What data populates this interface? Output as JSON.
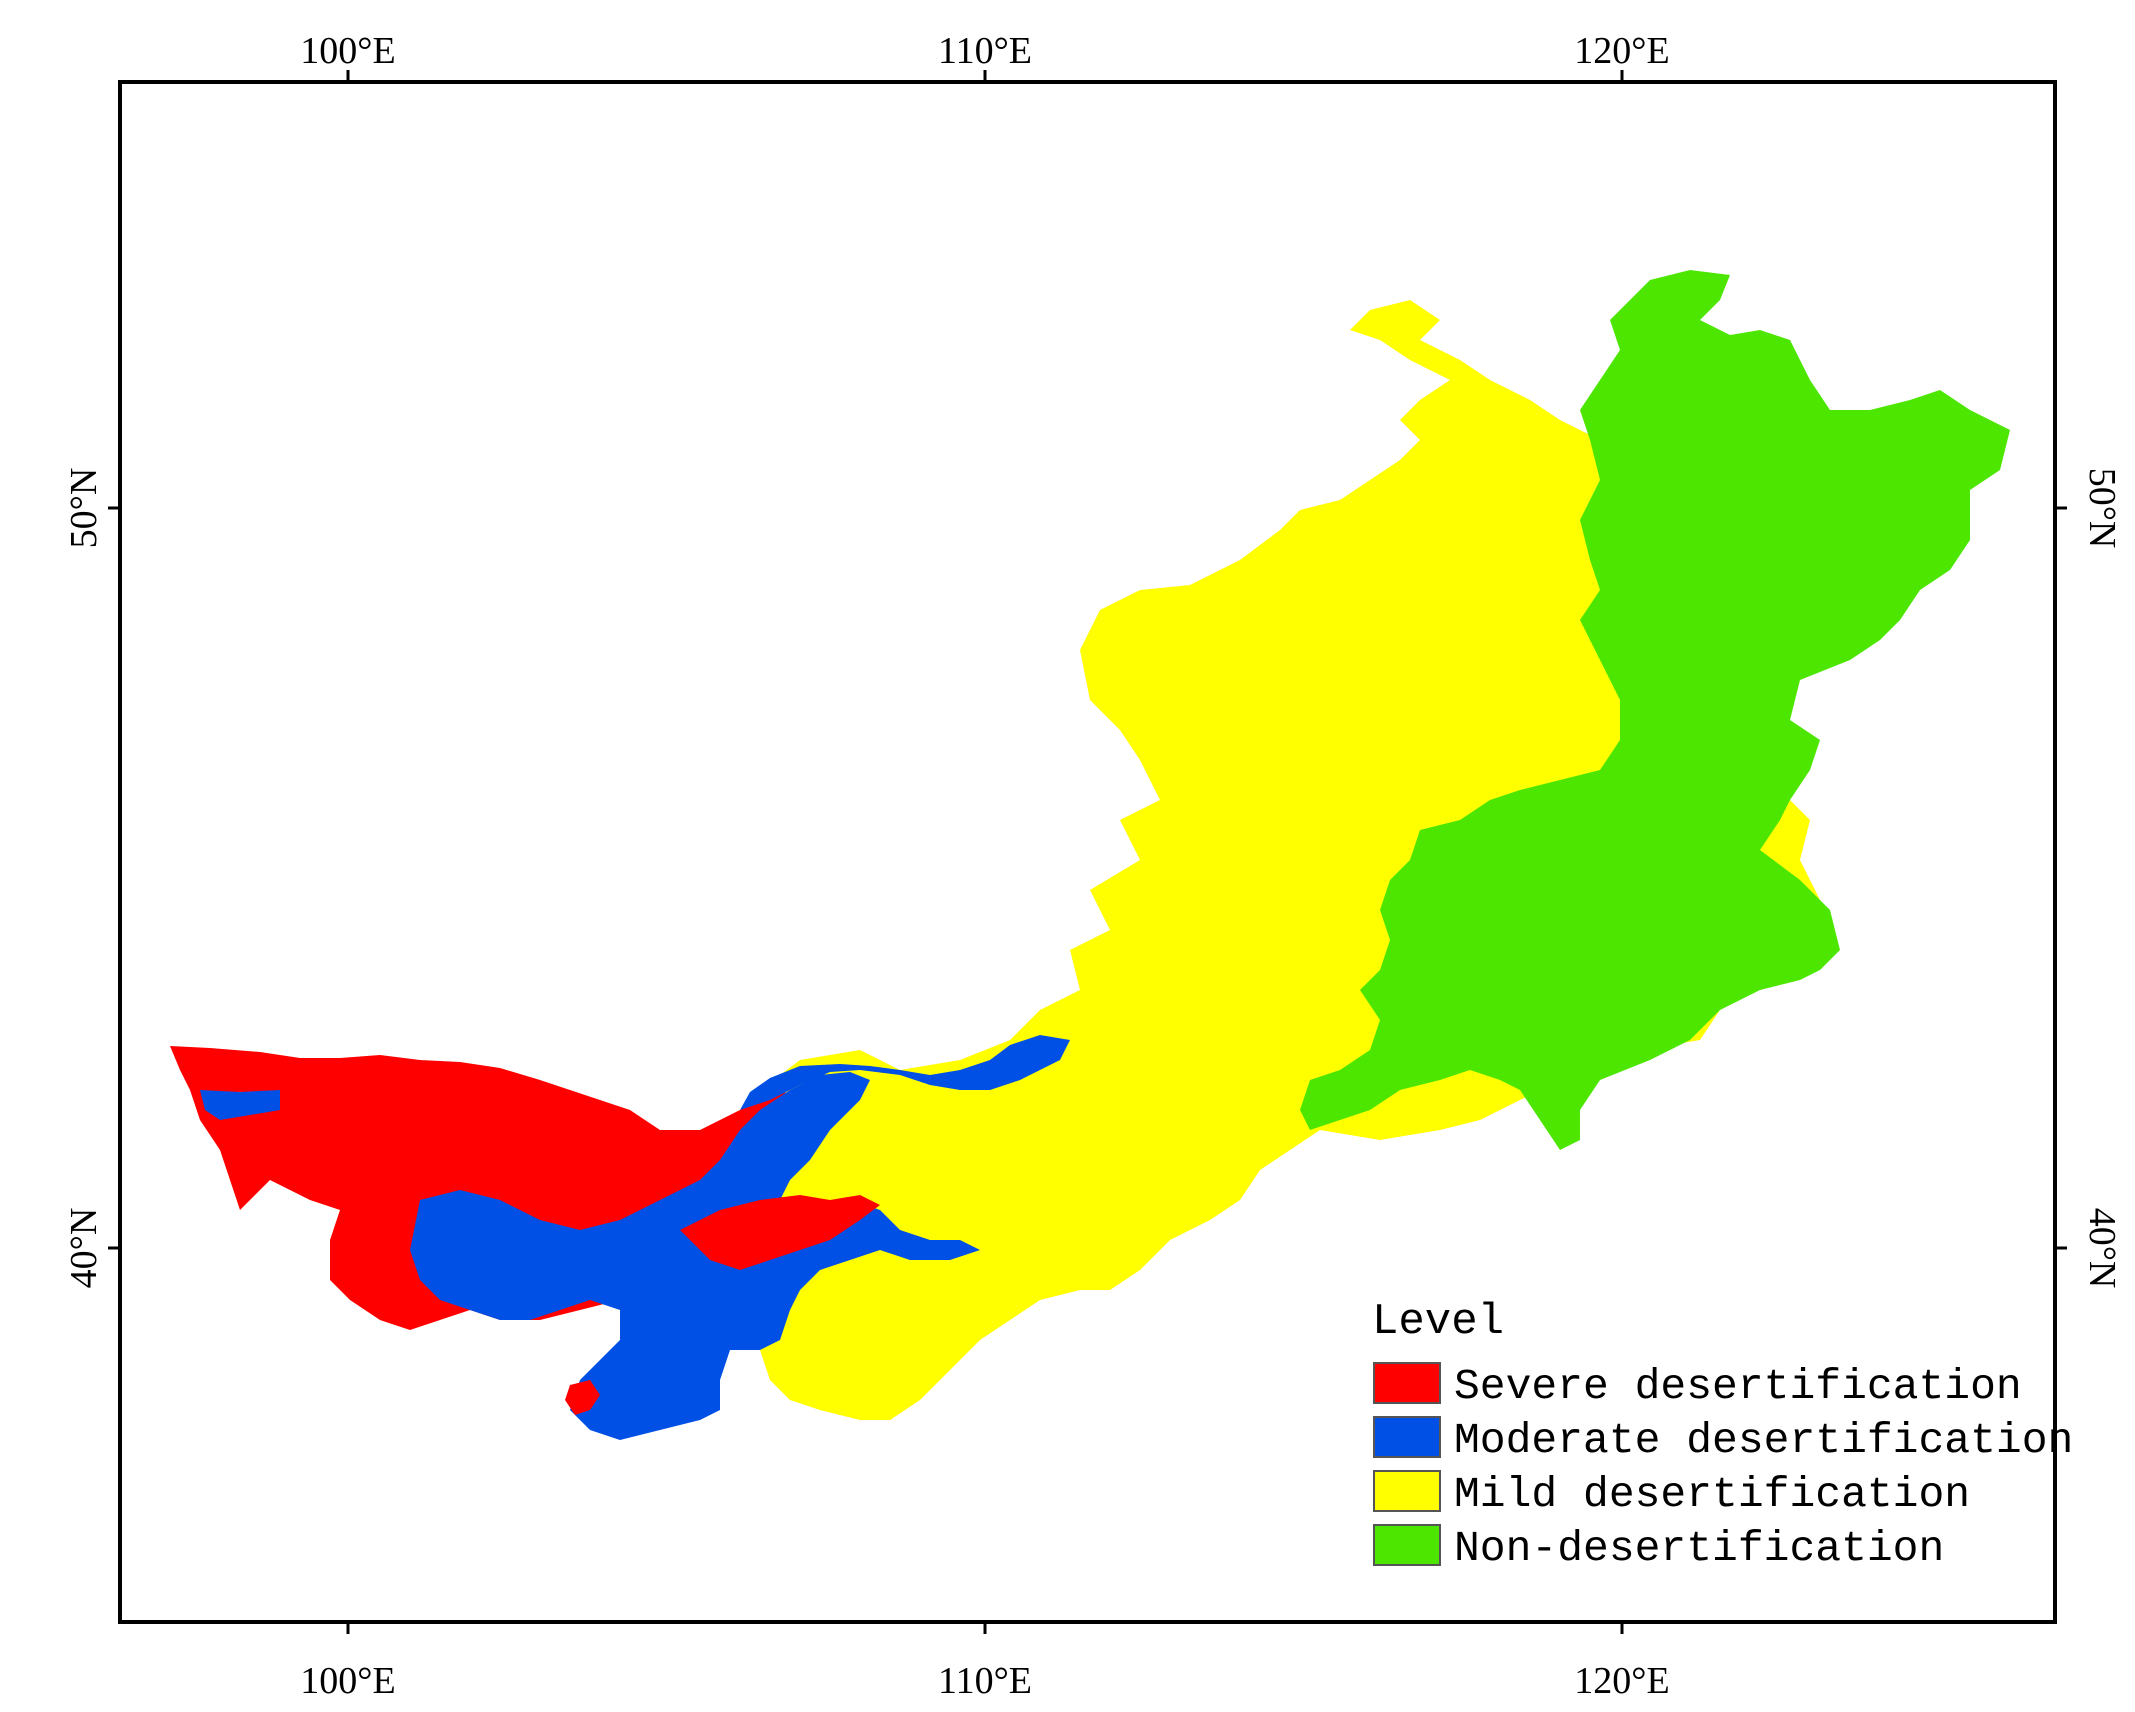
{
  "axes": {
    "longitude_ticks": [
      "100°E",
      "110°E",
      "120°E"
    ],
    "latitude_ticks": [
      "50°N",
      "40°N"
    ]
  },
  "legend": {
    "title": "Level",
    "items": [
      {
        "label": "Severe desertification",
        "color": "#ff0000"
      },
      {
        "label": "Moderate desertification",
        "color": "#0050e6"
      },
      {
        "label": "Mild desertification",
        "color": "#ffff00"
      },
      {
        "label": "Non-desertification",
        "color": "#4ce600"
      }
    ]
  }
}
